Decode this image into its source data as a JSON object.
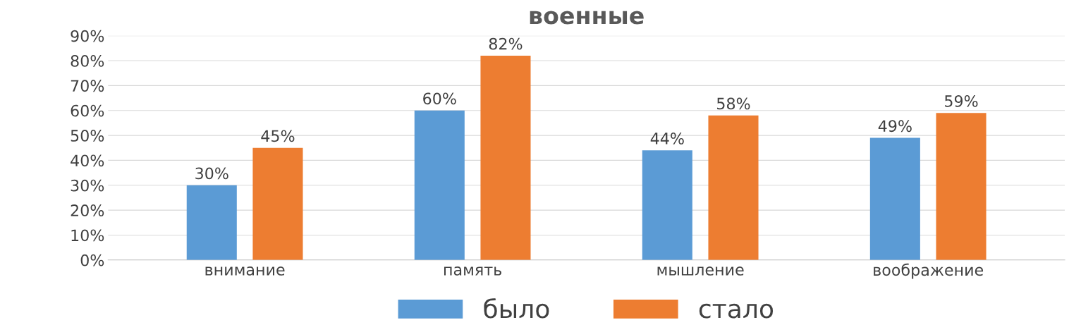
{
  "chart_data": {
    "type": "bar",
    "title": "военные",
    "categories": [
      "внимание",
      "память",
      "мышление",
      "воображение"
    ],
    "series": [
      {
        "name": "было",
        "color": "#5b9bd5",
        "values": [
          30,
          60,
          44,
          49
        ],
        "value_labels": [
          "30%",
          "60%",
          "44%",
          "49%"
        ]
      },
      {
        "name": "стало",
        "color": "#ed7d31",
        "values": [
          45,
          82,
          58,
          59
        ],
        "value_labels": [
          "45%",
          "82%",
          "58%",
          "59%"
        ]
      }
    ],
    "ylim": [
      0,
      90
    ],
    "yticks": [
      {
        "value": 0,
        "label": "0%"
      },
      {
        "value": 10,
        "label": "10%"
      },
      {
        "value": 20,
        "label": "20%"
      },
      {
        "value": 30,
        "label": "30%"
      },
      {
        "value": 40,
        "label": "40%"
      },
      {
        "value": 50,
        "label": "50%"
      },
      {
        "value": 60,
        "label": "60%"
      },
      {
        "value": 70,
        "label": "70%"
      },
      {
        "value": 80,
        "label": "80%"
      },
      {
        "value": 90,
        "label": "90%"
      }
    ],
    "grid": "y",
    "legend": "bottom"
  }
}
